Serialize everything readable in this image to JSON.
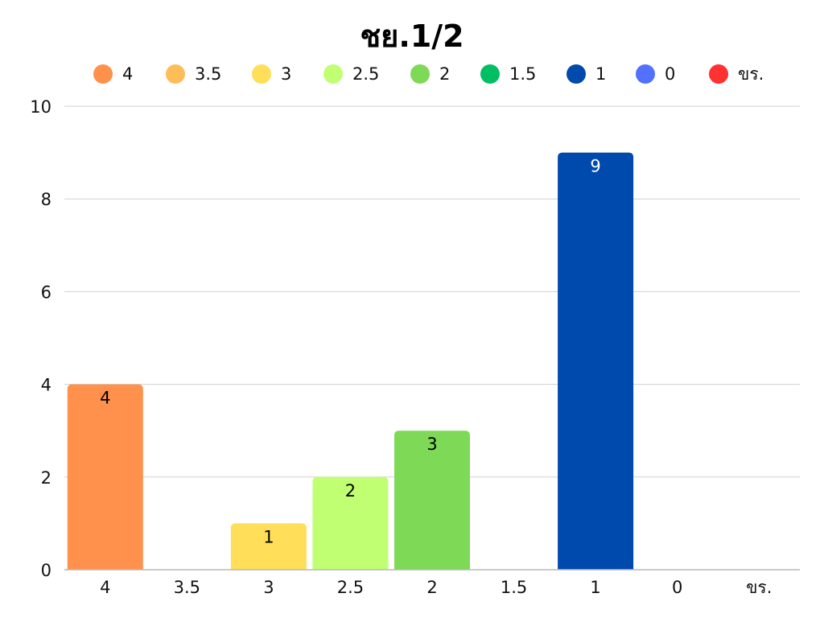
{
  "chart_data": {
    "type": "bar",
    "title": "ชย.1/2",
    "xlabel": "",
    "ylabel": "",
    "ylim": [
      0,
      10
    ],
    "yticks": [
      0,
      2,
      4,
      6,
      8,
      10
    ],
    "grid": true,
    "legend_position": "top",
    "categories": [
      "4",
      "3.5",
      "3",
      "2.5",
      "2",
      "1.5",
      "1",
      "0",
      "ขร."
    ],
    "values": [
      4,
      0,
      1,
      2,
      3,
      0,
      9,
      0,
      0
    ],
    "colors": [
      "#FF914D",
      "#FFBD59",
      "#FFDE59",
      "#C1FF72",
      "#7ED957",
      "#00BF63",
      "#004AAD",
      "#5271FF",
      "#FF3131"
    ],
    "label_colors": [
      "#000000",
      "#000000",
      "#000000",
      "#000000",
      "#000000",
      "#000000",
      "#FFFFFF",
      "#000000",
      "#000000"
    ]
  }
}
